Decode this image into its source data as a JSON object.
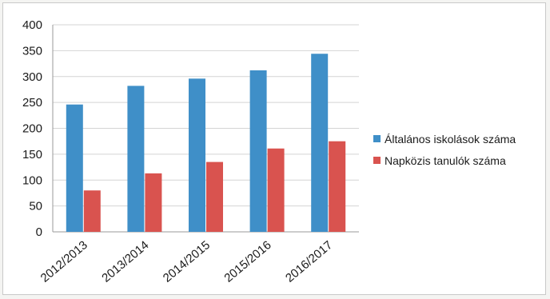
{
  "chart_data": {
    "type": "bar",
    "categories": [
      "2012/2013",
      "2013/2014",
      "2014/2015",
      "2015/2016",
      "2016/2017"
    ],
    "series": [
      {
        "name": "Általános iskolások száma",
        "values": [
          246,
          282,
          296,
          312,
          344
        ],
        "color": "#3f8fc8"
      },
      {
        "name": "Napközis tanulók száma",
        "values": [
          80,
          113,
          135,
          161,
          175
        ],
        "color": "#d9534f"
      }
    ],
    "ylim": [
      0,
      400
    ],
    "yticks": [
      0,
      50,
      100,
      150,
      200,
      250,
      300,
      350,
      400
    ],
    "grid": true,
    "legend": "right"
  }
}
